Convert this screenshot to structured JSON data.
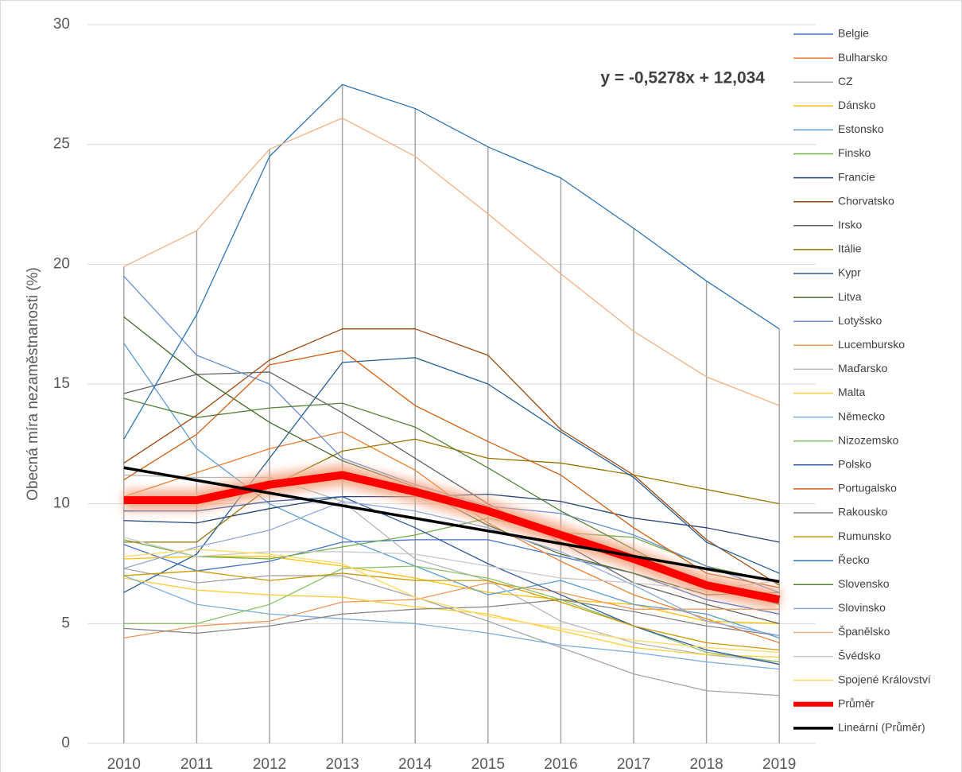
{
  "chart_data": {
    "type": "line",
    "y_label": "Obecná míra nezaměstnanosti (%)",
    "categories": [
      "2010",
      "2011",
      "2012",
      "2013",
      "2014",
      "2015",
      "2016",
      "2017",
      "2018",
      "2019"
    ],
    "ylim": [
      0,
      30
    ],
    "yticks": [
      0,
      5,
      10,
      15,
      20,
      25,
      30
    ],
    "grid": true,
    "drop_lines": true,
    "legend": "right",
    "series": [
      {
        "name": "Belgie",
        "color": "#4472c4",
        "values": [
          8.3,
          7.2,
          7.6,
          8.4,
          8.5,
          8.5,
          7.8,
          7.1,
          6.0,
          5.4
        ]
      },
      {
        "name": "Bulharsko",
        "color": "#ed7d31",
        "values": [
          10.3,
          11.3,
          12.3,
          13.0,
          11.4,
          9.2,
          7.6,
          6.2,
          5.2,
          4.2
        ]
      },
      {
        "name": "CZ",
        "color": "#a5a5a5",
        "values": [
          7.3,
          6.7,
          7.0,
          7.0,
          6.1,
          5.1,
          4.0,
          2.9,
          2.2,
          2.0
        ]
      },
      {
        "name": "Dánsko",
        "color": "#ffc000",
        "values": [
          7.7,
          7.8,
          7.8,
          7.4,
          6.9,
          6.3,
          6.0,
          5.8,
          5.1,
          5.0
        ]
      },
      {
        "name": "Estonsko",
        "color": "#5b9bd5",
        "values": [
          16.7,
          12.3,
          10.0,
          8.6,
          7.4,
          6.2,
          6.8,
          5.8,
          5.4,
          4.4
        ]
      },
      {
        "name": "Finsko",
        "color": "#70ad47",
        "values": [
          8.5,
          7.8,
          7.7,
          8.2,
          8.7,
          9.4,
          8.8,
          8.6,
          7.4,
          6.7
        ]
      },
      {
        "name": "Francie",
        "color": "#264478",
        "values": [
          9.3,
          9.2,
          9.8,
          10.3,
          10.3,
          10.4,
          10.1,
          9.4,
          9.0,
          8.4
        ]
      },
      {
        "name": "Chorvatsko",
        "color": "#9e480e",
        "values": [
          11.7,
          13.7,
          16.0,
          17.3,
          17.3,
          16.2,
          13.1,
          11.2,
          8.5,
          6.6
        ]
      },
      {
        "name": "Irsko",
        "color": "#636363",
        "values": [
          14.6,
          15.4,
          15.5,
          13.8,
          11.9,
          10.0,
          8.4,
          6.7,
          5.8,
          5.0
        ]
      },
      {
        "name": "Itálie",
        "color": "#997300",
        "values": [
          8.4,
          8.4,
          10.7,
          12.2,
          12.7,
          11.9,
          11.7,
          11.2,
          10.6,
          10.0
        ]
      },
      {
        "name": "Kypr",
        "color": "#255e91",
        "values": [
          6.3,
          7.9,
          11.9,
          15.9,
          16.1,
          15.0,
          13.0,
          11.1,
          8.4,
          7.1
        ]
      },
      {
        "name": "Litva",
        "color": "#43682b",
        "values": [
          17.8,
          15.4,
          13.4,
          11.8,
          10.7,
          9.1,
          7.9,
          7.1,
          6.2,
          6.3
        ]
      },
      {
        "name": "Lotyšsko",
        "color": "#698ed0",
        "values": [
          19.5,
          16.2,
          15.0,
          11.9,
          10.8,
          9.9,
          9.6,
          8.7,
          7.4,
          6.3
        ]
      },
      {
        "name": "Lucembursko",
        "color": "#f1975a",
        "values": [
          4.4,
          4.9,
          5.1,
          5.9,
          6.0,
          6.7,
          6.3,
          5.6,
          5.6,
          5.6
        ]
      },
      {
        "name": "Maďarsko",
        "color": "#b7b7b7",
        "values": [
          11.2,
          11.1,
          11.1,
          10.1,
          7.7,
          6.8,
          5.1,
          4.2,
          3.7,
          3.4
        ]
      },
      {
        "name": "Malta",
        "color": "#ffcd33",
        "values": [
          6.9,
          6.4,
          6.2,
          6.1,
          5.7,
          5.4,
          4.7,
          4.0,
          3.7,
          3.6
        ]
      },
      {
        "name": "Německo",
        "color": "#7cafdd",
        "values": [
          7.0,
          5.8,
          5.4,
          5.2,
          5.0,
          4.6,
          4.1,
          3.8,
          3.4,
          3.1
        ]
      },
      {
        "name": "Nizozemsko",
        "color": "#8cc168",
        "values": [
          5.0,
          5.0,
          5.8,
          7.3,
          7.4,
          6.9,
          6.0,
          4.9,
          3.8,
          3.4
        ]
      },
      {
        "name": "Polsko",
        "color": "#335aa1",
        "values": [
          9.7,
          9.7,
          10.1,
          10.3,
          9.0,
          7.5,
          6.2,
          4.9,
          3.9,
          3.3
        ]
      },
      {
        "name": "Portugalsko",
        "color": "#d26012",
        "values": [
          11.0,
          12.9,
          15.8,
          16.4,
          14.1,
          12.6,
          11.2,
          9.0,
          7.1,
          6.5
        ]
      },
      {
        "name": "Rakousko",
        "color": "#848484",
        "values": [
          4.8,
          4.6,
          4.9,
          5.4,
          5.6,
          5.7,
          6.0,
          5.5,
          4.9,
          4.5
        ]
      },
      {
        "name": "Rumunsko",
        "color": "#cc9a00",
        "values": [
          7.0,
          7.2,
          6.8,
          7.1,
          6.8,
          6.8,
          5.9,
          4.9,
          4.2,
          3.9
        ]
      },
      {
        "name": "Řecko",
        "color": "#2e75b6",
        "values": [
          12.7,
          17.9,
          24.5,
          27.5,
          26.5,
          24.9,
          23.6,
          21.5,
          19.3,
          17.3
        ]
      },
      {
        "name": "Slovensko",
        "color": "#548235",
        "values": [
          14.4,
          13.6,
          14.0,
          14.2,
          13.2,
          11.5,
          9.7,
          8.1,
          6.5,
          5.8
        ]
      },
      {
        "name": "Slovinsko",
        "color": "#8faadc",
        "values": [
          7.3,
          8.2,
          8.9,
          10.1,
          9.7,
          9.0,
          8.0,
          6.6,
          5.1,
          4.5
        ]
      },
      {
        "name": "Španělsko",
        "color": "#f4b183",
        "values": [
          19.9,
          21.4,
          24.8,
          26.1,
          24.5,
          22.1,
          19.6,
          17.2,
          15.3,
          14.1
        ]
      },
      {
        "name": "Švédsko",
        "color": "#c9c9c9",
        "values": [
          8.6,
          7.8,
          8.0,
          8.0,
          7.9,
          7.4,
          6.9,
          6.7,
          6.4,
          6.8
        ]
      },
      {
        "name": "Spojené Království",
        "color": "#ffd966",
        "values": [
          7.8,
          8.1,
          7.9,
          7.5,
          6.1,
          5.3,
          4.8,
          4.3,
          4.0,
          3.8
        ]
      },
      {
        "name": "Průměr",
        "color": "#ff0000",
        "glow": true,
        "values": [
          10.15,
          10.15,
          10.8,
          11.2,
          10.5,
          9.7,
          8.7,
          7.7,
          6.6,
          6.0
        ]
      }
    ],
    "trendline": {
      "name": "Lineární (Průměr)",
      "color": "#000000",
      "label": "y = -0,5278x + 12,034",
      "slope": -0.5278,
      "intercept": 12.034
    }
  }
}
